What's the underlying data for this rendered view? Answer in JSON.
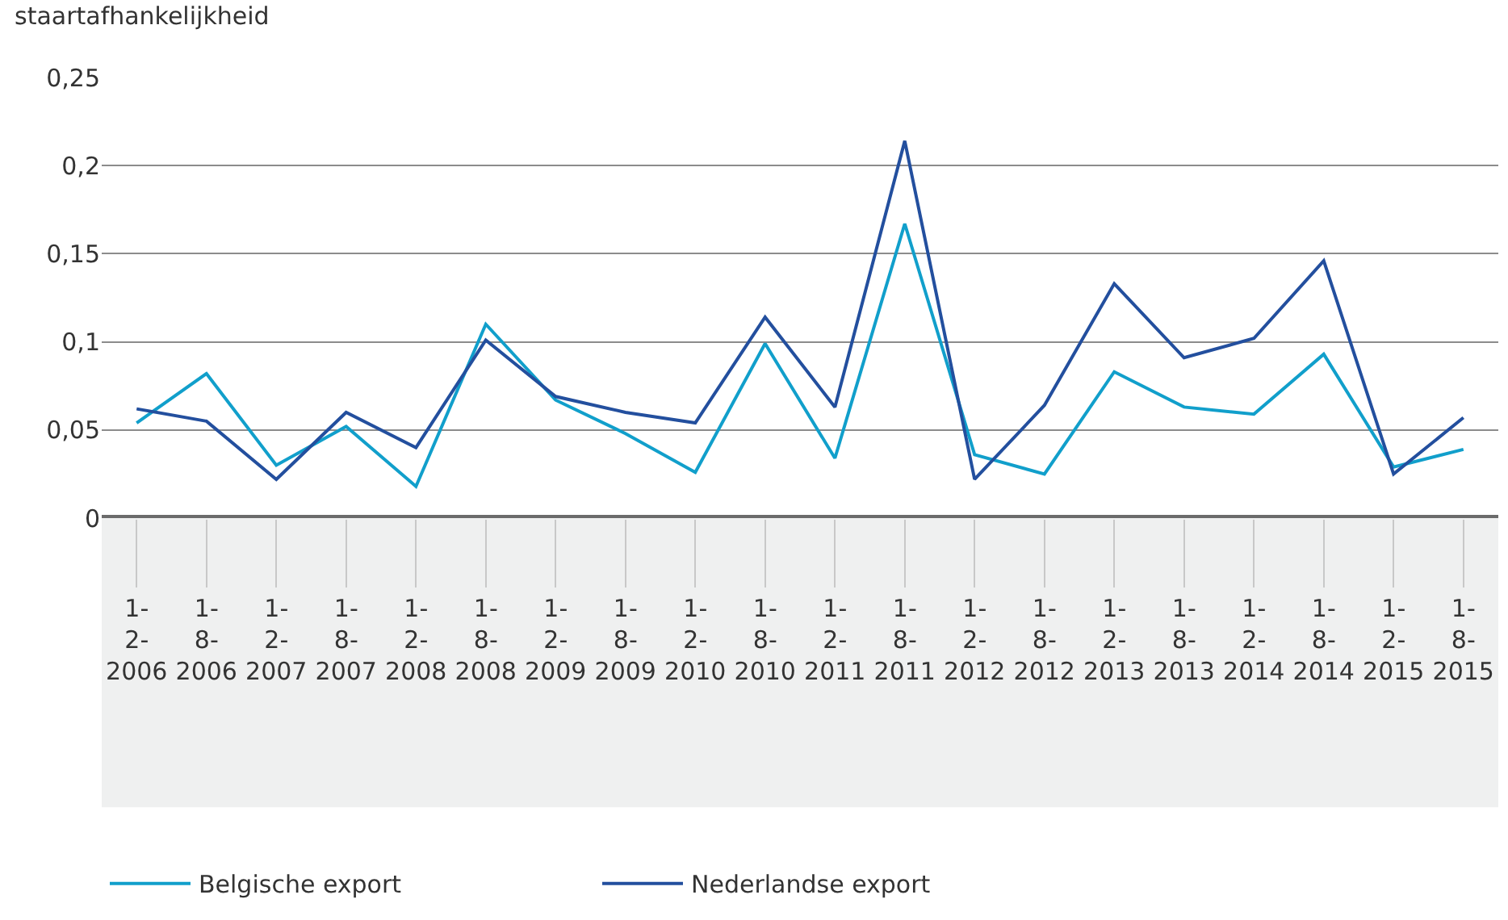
{
  "chart_data": {
    "type": "line",
    "ylabel": "staartafhankelijkheid",
    "categories": [
      "1-2-2006",
      "1-8-2006",
      "1-2-2007",
      "1-8-2007",
      "1-2-2008",
      "1-8-2008",
      "1-2-2009",
      "1-8-2009",
      "1-2-2010",
      "1-8-2010",
      "1-2-2011",
      "1-8-2011",
      "1-2-2012",
      "1-8-2012",
      "1-2-2013",
      "1-8-2013",
      "1-2-2014",
      "1-8-2014",
      "1-2-2015",
      "1-8-2015"
    ],
    "series": [
      {
        "name": "Belgische export",
        "color": "#119fcb",
        "values": [
          0.054,
          0.082,
          0.03,
          0.052,
          0.018,
          0.11,
          0.067,
          0.048,
          0.026,
          0.099,
          0.034,
          0.167,
          0.036,
          0.025,
          0.083,
          0.063,
          0.059,
          0.093,
          0.029,
          0.039
        ]
      },
      {
        "name": "Nederlandse export",
        "color": "#234f9e",
        "values": [
          0.062,
          0.055,
          0.022,
          0.06,
          0.04,
          0.101,
          0.069,
          0.06,
          0.054,
          0.114,
          0.063,
          0.214,
          0.022,
          0.064,
          0.133,
          0.091,
          0.102,
          0.146,
          0.025,
          0.057
        ]
      }
    ],
    "ylim": [
      0,
      0.25
    ],
    "yticks": [
      0,
      {
        "value": 0.05,
        "label": "0,05"
      },
      {
        "value": 0.1,
        "label": "0,1"
      },
      {
        "value": 0.15,
        "label": "0,15"
      },
      {
        "value": 0.2,
        "label": "0,2"
      },
      {
        "value": 0.25,
        "label": "0,25"
      }
    ],
    "grid": "y",
    "legend": "bottom",
    "marker": "none",
    "line_style": "solid"
  }
}
